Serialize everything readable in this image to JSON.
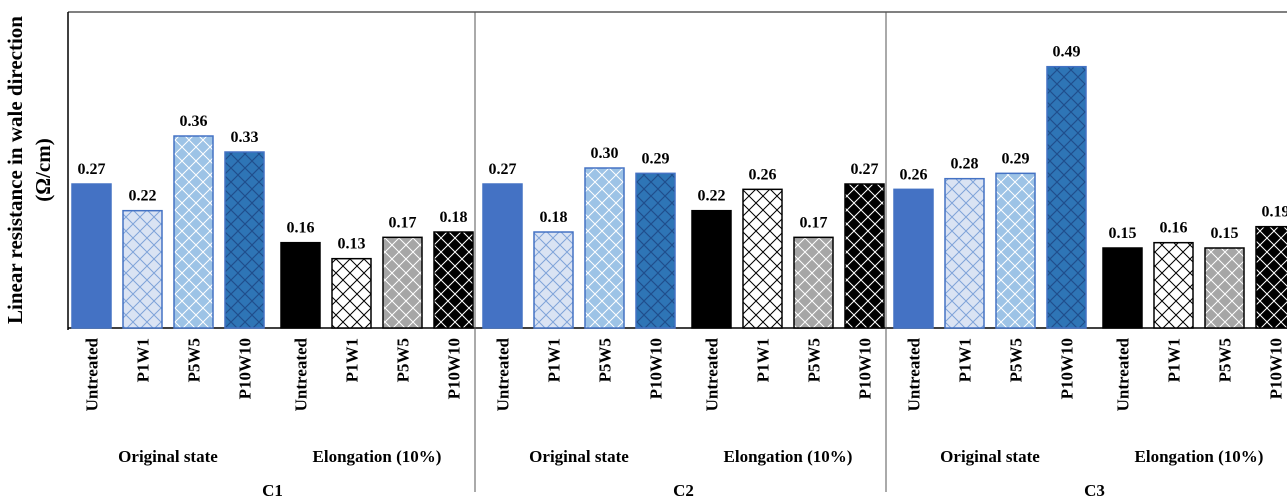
{
  "chart_data": {
    "type": "bar",
    "ylabel": "Linear resistance in wale direction",
    "yunit": "(Ω/cm)",
    "ylim": [
      0,
      0.55
    ],
    "grid": false,
    "legend": "none",
    "treatments": [
      "Untreated",
      "P1W1",
      "P5W5",
      "P10W10"
    ],
    "conditions": [
      "Original state",
      "Elongation (10%)"
    ],
    "fabrics": [
      {
        "name": "C1",
        "groups": [
          {
            "condition": "Original state",
            "values": [
              0.27,
              0.22,
              0.36,
              0.33
            ]
          },
          {
            "condition": "Elongation (10%)",
            "values": [
              0.16,
              0.13,
              0.17,
              0.18
            ]
          }
        ]
      },
      {
        "name": "C2",
        "groups": [
          {
            "condition": "Original state",
            "values": [
              0.27,
              0.18,
              0.3,
              0.29
            ]
          },
          {
            "condition": "Elongation (10%)",
            "values": [
              0.22,
              0.26,
              0.17,
              0.27
            ]
          }
        ]
      },
      {
        "name": "C3",
        "groups": [
          {
            "condition": "Original state",
            "values": [
              0.26,
              0.28,
              0.29,
              0.49
            ]
          },
          {
            "condition": "Elongation (10%)",
            "values": [
              0.15,
              0.16,
              0.15,
              0.19
            ]
          }
        ]
      }
    ],
    "colors": {
      "original_untreated": "#4472c4",
      "original_p1w1": "#dae3f3",
      "original_p5w5": "#9dc3e6",
      "original_p10w10": "#2e75b6",
      "original_stroke": "#4472c4",
      "elong_untreated": "#000000",
      "elong_p1w1": "#ffffff",
      "elong_p5w5": "#a6a6a6",
      "elong_p10w10": "#000000",
      "elong_stroke": "#000000"
    }
  }
}
